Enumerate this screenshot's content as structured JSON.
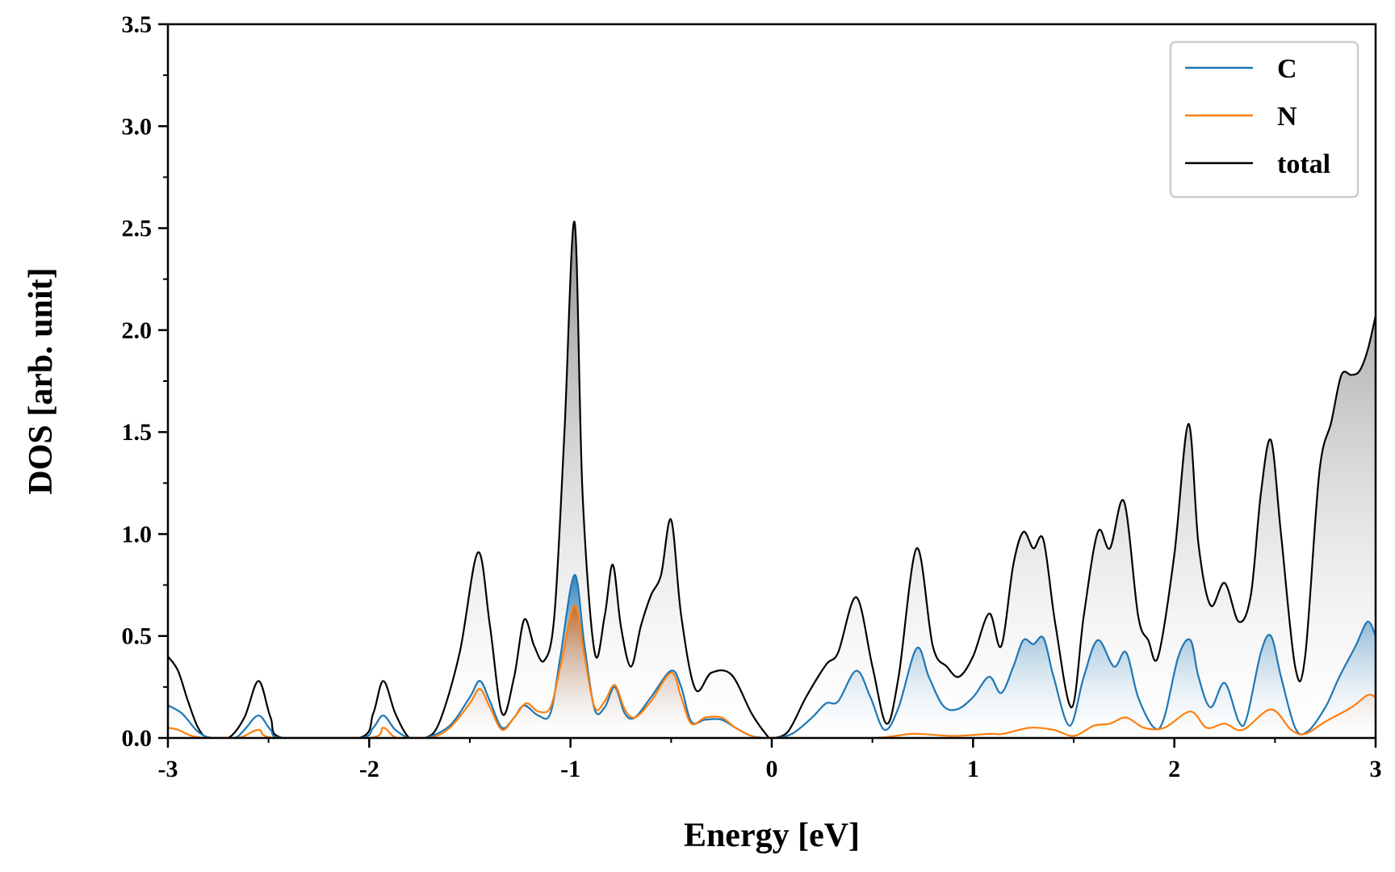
{
  "chart_data": {
    "type": "area",
    "title": "",
    "xlabel": "Energy [eV]",
    "ylabel": "DOS [arb. unit]",
    "xlim": [
      -3,
      3
    ],
    "ylim": [
      0,
      3.5
    ],
    "xticks": [
      -3,
      -2,
      -1,
      0,
      1,
      2,
      3
    ],
    "xtick_labels": [
      "-3",
      "-2",
      "-1",
      "0",
      "1",
      "2",
      "3"
    ],
    "yticks": [
      0,
      0.5,
      1,
      1.5,
      2,
      2.5,
      3,
      3.5
    ],
    "ytick_labels": [
      "0.0",
      "0.5",
      "1.0",
      "1.5",
      "2.0",
      "2.5",
      "3.0",
      "3.5"
    ],
    "legend": {
      "position": "top-right"
    },
    "grid": false,
    "series": [
      {
        "name": "C",
        "color": "#1f77b4",
        "points": [
          [
            -3.0,
            0.16
          ],
          [
            -2.93,
            0.12
          ],
          [
            -2.85,
            0.03
          ],
          [
            -2.78,
            0.0
          ],
          [
            -2.67,
            0.0
          ],
          [
            -2.62,
            0.04
          ],
          [
            -2.55,
            0.11
          ],
          [
            -2.49,
            0.04
          ],
          [
            -2.43,
            0.0
          ],
          [
            -2.05,
            0.0
          ],
          [
            -1.98,
            0.05
          ],
          [
            -1.93,
            0.11
          ],
          [
            -1.87,
            0.04
          ],
          [
            -1.8,
            0.0
          ],
          [
            -1.72,
            0.0
          ],
          [
            -1.6,
            0.06
          ],
          [
            -1.5,
            0.2
          ],
          [
            -1.45,
            0.28
          ],
          [
            -1.4,
            0.18
          ],
          [
            -1.34,
            0.05
          ],
          [
            -1.28,
            0.1
          ],
          [
            -1.23,
            0.16
          ],
          [
            -1.16,
            0.11
          ],
          [
            -1.1,
            0.12
          ],
          [
            -1.05,
            0.4
          ],
          [
            -0.98,
            0.8
          ],
          [
            -0.93,
            0.45
          ],
          [
            -0.88,
            0.14
          ],
          [
            -0.83,
            0.15
          ],
          [
            -0.78,
            0.25
          ],
          [
            -0.73,
            0.12
          ],
          [
            -0.68,
            0.1
          ],
          [
            -0.6,
            0.2
          ],
          [
            -0.5,
            0.33
          ],
          [
            -0.45,
            0.25
          ],
          [
            -0.4,
            0.08
          ],
          [
            -0.33,
            0.09
          ],
          [
            -0.25,
            0.09
          ],
          [
            -0.18,
            0.05
          ],
          [
            -0.1,
            0.01
          ],
          [
            0.0,
            0.0
          ],
          [
            0.1,
            0.02
          ],
          [
            0.2,
            0.1
          ],
          [
            0.27,
            0.17
          ],
          [
            0.33,
            0.18
          ],
          [
            0.42,
            0.33
          ],
          [
            0.49,
            0.2
          ],
          [
            0.56,
            0.04
          ],
          [
            0.63,
            0.15
          ],
          [
            0.72,
            0.44
          ],
          [
            0.78,
            0.3
          ],
          [
            0.85,
            0.16
          ],
          [
            0.92,
            0.14
          ],
          [
            1.0,
            0.2
          ],
          [
            1.08,
            0.3
          ],
          [
            1.14,
            0.22
          ],
          [
            1.2,
            0.35
          ],
          [
            1.25,
            0.48
          ],
          [
            1.3,
            0.46
          ],
          [
            1.35,
            0.49
          ],
          [
            1.4,
            0.3
          ],
          [
            1.48,
            0.06
          ],
          [
            1.55,
            0.3
          ],
          [
            1.62,
            0.48
          ],
          [
            1.7,
            0.35
          ],
          [
            1.76,
            0.42
          ],
          [
            1.82,
            0.2
          ],
          [
            1.9,
            0.05
          ],
          [
            1.95,
            0.1
          ],
          [
            2.02,
            0.4
          ],
          [
            2.08,
            0.48
          ],
          [
            2.12,
            0.3
          ],
          [
            2.18,
            0.15
          ],
          [
            2.25,
            0.27
          ],
          [
            2.32,
            0.08
          ],
          [
            2.36,
            0.1
          ],
          [
            2.43,
            0.42
          ],
          [
            2.48,
            0.5
          ],
          [
            2.53,
            0.3
          ],
          [
            2.6,
            0.05
          ],
          [
            2.66,
            0.03
          ],
          [
            2.75,
            0.15
          ],
          [
            2.82,
            0.3
          ],
          [
            2.9,
            0.45
          ],
          [
            2.96,
            0.57
          ],
          [
            3.0,
            0.5
          ]
        ]
      },
      {
        "name": "N",
        "color": "#ff7f0e",
        "points": [
          [
            -3.0,
            0.05
          ],
          [
            -2.95,
            0.04
          ],
          [
            -2.88,
            0.01
          ],
          [
            -2.8,
            0.0
          ],
          [
            -2.65,
            0.0
          ],
          [
            -2.55,
            0.04
          ],
          [
            -2.47,
            0.0
          ],
          [
            -2.0,
            0.0
          ],
          [
            -1.93,
            0.05
          ],
          [
            -1.86,
            0.0
          ],
          [
            -1.7,
            0.0
          ],
          [
            -1.6,
            0.05
          ],
          [
            -1.5,
            0.17
          ],
          [
            -1.45,
            0.24
          ],
          [
            -1.4,
            0.15
          ],
          [
            -1.34,
            0.04
          ],
          [
            -1.28,
            0.1
          ],
          [
            -1.22,
            0.17
          ],
          [
            -1.16,
            0.13
          ],
          [
            -1.1,
            0.15
          ],
          [
            -1.05,
            0.35
          ],
          [
            -0.98,
            0.65
          ],
          [
            -0.93,
            0.4
          ],
          [
            -0.88,
            0.15
          ],
          [
            -0.83,
            0.18
          ],
          [
            -0.78,
            0.26
          ],
          [
            -0.73,
            0.14
          ],
          [
            -0.68,
            0.1
          ],
          [
            -0.6,
            0.18
          ],
          [
            -0.5,
            0.32
          ],
          [
            -0.45,
            0.2
          ],
          [
            -0.4,
            0.07
          ],
          [
            -0.33,
            0.1
          ],
          [
            -0.25,
            0.1
          ],
          [
            -0.18,
            0.05
          ],
          [
            -0.1,
            0.01
          ],
          [
            0.0,
            0.0
          ],
          [
            0.5,
            0.0
          ],
          [
            0.7,
            0.02
          ],
          [
            0.9,
            0.01
          ],
          [
            1.08,
            0.02
          ],
          [
            1.15,
            0.02
          ],
          [
            1.28,
            0.05
          ],
          [
            1.4,
            0.04
          ],
          [
            1.5,
            0.01
          ],
          [
            1.6,
            0.06
          ],
          [
            1.68,
            0.07
          ],
          [
            1.76,
            0.1
          ],
          [
            1.85,
            0.05
          ],
          [
            1.95,
            0.05
          ],
          [
            2.08,
            0.13
          ],
          [
            2.16,
            0.05
          ],
          [
            2.25,
            0.07
          ],
          [
            2.34,
            0.04
          ],
          [
            2.48,
            0.14
          ],
          [
            2.58,
            0.04
          ],
          [
            2.65,
            0.02
          ],
          [
            2.75,
            0.08
          ],
          [
            2.88,
            0.15
          ],
          [
            2.96,
            0.21
          ],
          [
            3.0,
            0.2
          ]
        ]
      },
      {
        "name": "total",
        "color": "#000000",
        "points": [
          [
            -3.0,
            0.4
          ],
          [
            -2.95,
            0.33
          ],
          [
            -2.9,
            0.18
          ],
          [
            -2.85,
            0.05
          ],
          [
            -2.8,
            0.0
          ],
          [
            -2.7,
            0.0
          ],
          [
            -2.62,
            0.1
          ],
          [
            -2.55,
            0.28
          ],
          [
            -2.49,
            0.1
          ],
          [
            -2.43,
            0.0
          ],
          [
            -2.05,
            0.0
          ],
          [
            -1.98,
            0.12
          ],
          [
            -1.93,
            0.28
          ],
          [
            -1.87,
            0.12
          ],
          [
            -1.8,
            0.0
          ],
          [
            -1.72,
            0.0
          ],
          [
            -1.65,
            0.08
          ],
          [
            -1.55,
            0.42
          ],
          [
            -1.46,
            0.91
          ],
          [
            -1.4,
            0.55
          ],
          [
            -1.34,
            0.12
          ],
          [
            -1.28,
            0.3
          ],
          [
            -1.23,
            0.58
          ],
          [
            -1.18,
            0.45
          ],
          [
            -1.13,
            0.38
          ],
          [
            -1.08,
            0.6
          ],
          [
            -1.03,
            1.5
          ],
          [
            -0.98,
            2.53
          ],
          [
            -0.94,
            1.2
          ],
          [
            -0.88,
            0.42
          ],
          [
            -0.83,
            0.6
          ],
          [
            -0.79,
            0.85
          ],
          [
            -0.75,
            0.55
          ],
          [
            -0.7,
            0.35
          ],
          [
            -0.65,
            0.55
          ],
          [
            -0.6,
            0.7
          ],
          [
            -0.55,
            0.8
          ],
          [
            -0.5,
            1.07
          ],
          [
            -0.45,
            0.6
          ],
          [
            -0.38,
            0.24
          ],
          [
            -0.3,
            0.32
          ],
          [
            -0.2,
            0.31
          ],
          [
            -0.1,
            0.12
          ],
          [
            -0.03,
            0.02
          ],
          [
            0.0,
            0.0
          ],
          [
            0.08,
            0.03
          ],
          [
            0.17,
            0.2
          ],
          [
            0.27,
            0.36
          ],
          [
            0.33,
            0.42
          ],
          [
            0.42,
            0.69
          ],
          [
            0.5,
            0.35
          ],
          [
            0.57,
            0.07
          ],
          [
            0.63,
            0.3
          ],
          [
            0.72,
            0.93
          ],
          [
            0.8,
            0.45
          ],
          [
            0.87,
            0.35
          ],
          [
            0.93,
            0.3
          ],
          [
            1.0,
            0.4
          ],
          [
            1.08,
            0.61
          ],
          [
            1.14,
            0.45
          ],
          [
            1.2,
            0.85
          ],
          [
            1.25,
            1.01
          ],
          [
            1.3,
            0.93
          ],
          [
            1.35,
            0.97
          ],
          [
            1.41,
            0.55
          ],
          [
            1.49,
            0.15
          ],
          [
            1.55,
            0.6
          ],
          [
            1.62,
            1.01
          ],
          [
            1.68,
            0.93
          ],
          [
            1.75,
            1.16
          ],
          [
            1.82,
            0.6
          ],
          [
            1.87,
            0.48
          ],
          [
            1.92,
            0.4
          ],
          [
            2.0,
            0.9
          ],
          [
            2.07,
            1.54
          ],
          [
            2.12,
            0.95
          ],
          [
            2.18,
            0.65
          ],
          [
            2.25,
            0.76
          ],
          [
            2.32,
            0.57
          ],
          [
            2.38,
            0.7
          ],
          [
            2.43,
            1.2
          ],
          [
            2.48,
            1.46
          ],
          [
            2.53,
            1.0
          ],
          [
            2.6,
            0.35
          ],
          [
            2.65,
            0.4
          ],
          [
            2.72,
            1.3
          ],
          [
            2.78,
            1.55
          ],
          [
            2.83,
            1.78
          ],
          [
            2.88,
            1.78
          ],
          [
            2.92,
            1.8
          ],
          [
            2.96,
            1.9
          ],
          [
            3.0,
            2.07
          ]
        ]
      }
    ]
  }
}
